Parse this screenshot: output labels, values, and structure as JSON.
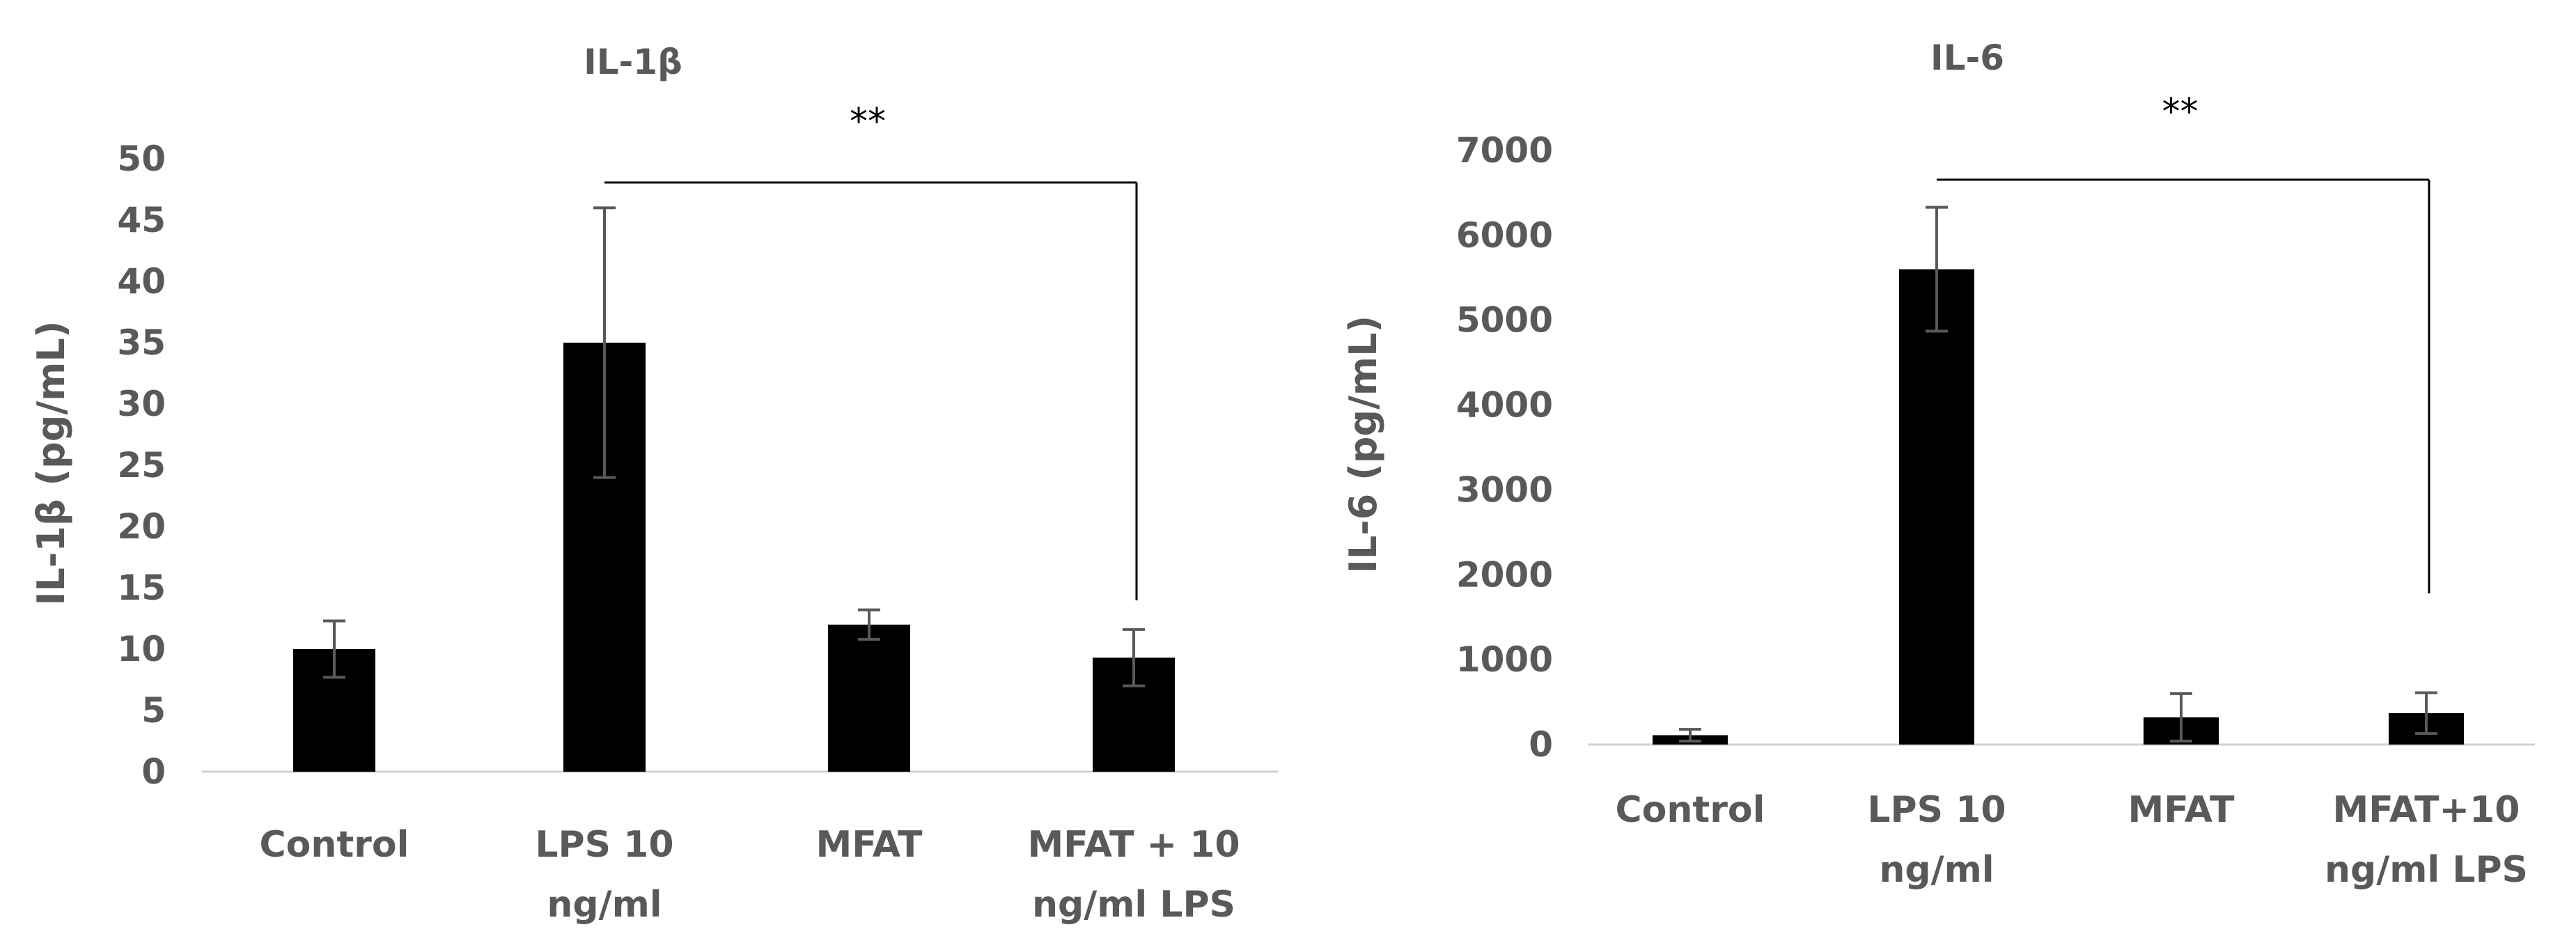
{
  "chart_data": [
    {
      "type": "bar",
      "title": "IL-1β",
      "xlabel": "",
      "ylabel": "IL-1β (pg/mL)",
      "categories": [
        "Control",
        "LPS 10\nng/ml",
        "MFAT",
        "MFAT + 10\nng/ml LPS"
      ],
      "series": [
        {
          "values": [
            10,
            35,
            12,
            9.3
          ],
          "error": [
            2.3,
            11,
            1.2,
            2.3
          ]
        }
      ],
      "ylim": [
        0,
        50
      ],
      "yticks": [
        0,
        5,
        10,
        15,
        20,
        25,
        30,
        35,
        40,
        45,
        50
      ],
      "grid": false,
      "bar_color": "#000000",
      "error_color": "#595959",
      "significance": {
        "from_category": 1,
        "to_category": 3,
        "label": "**"
      }
    },
    {
      "type": "bar",
      "title": "IL-6",
      "xlabel": "",
      "ylabel": "IL-6 (pg/mL)",
      "categories": [
        "Control",
        "LPS 10\nng/ml",
        "MFAT",
        "MFAT+10\nng/ml LPS"
      ],
      "series": [
        {
          "values": [
            110,
            5600,
            320,
            370
          ],
          "error": [
            70,
            730,
            280,
            240
          ]
        }
      ],
      "ylim": [
        0,
        7000
      ],
      "yticks": [
        0,
        1000,
        2000,
        3000,
        4000,
        5000,
        6000,
        7000
      ],
      "grid": false,
      "bar_color": "#000000",
      "error_color": "#595959",
      "significance": {
        "from_category": 1,
        "to_category": 3,
        "label": "**"
      }
    }
  ]
}
